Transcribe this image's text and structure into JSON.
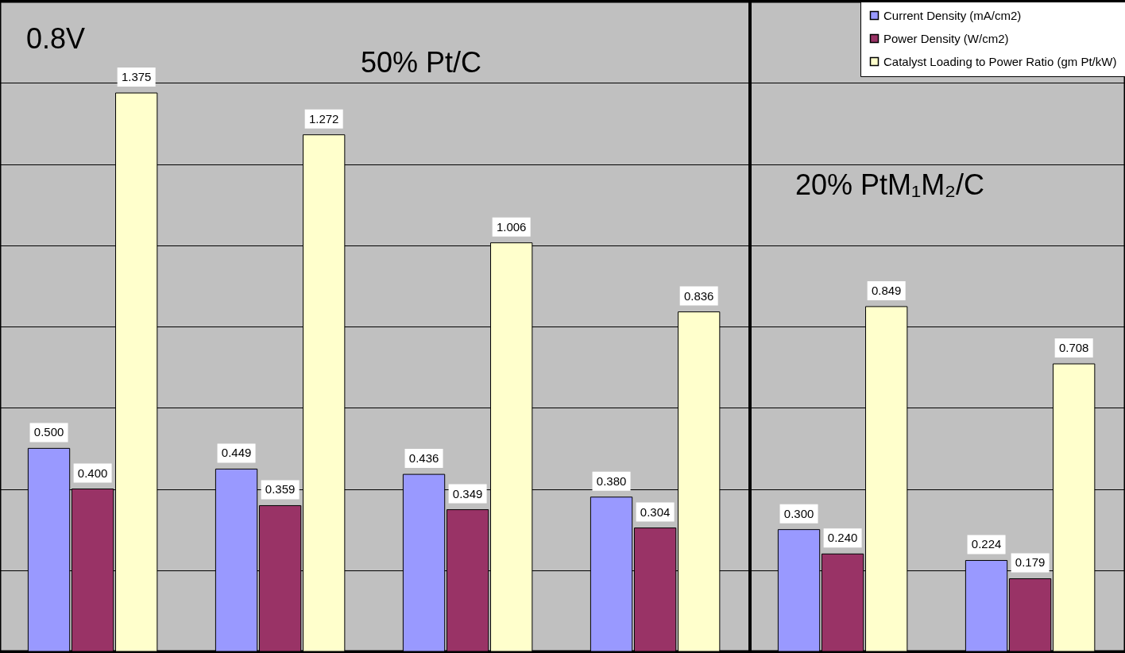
{
  "chart_data": {
    "type": "bar",
    "categories": [
      null,
      null,
      null,
      null,
      null,
      null
    ],
    "series": [
      {
        "name": "Current Density (mA/cm2)",
        "color": "#9999ff",
        "values": [
          0.5,
          0.449,
          0.436,
          0.38,
          0.3,
          0.224
        ],
        "value_labels": [
          "0.500",
          "0.449",
          "0.436",
          "0.380",
          "0.300",
          "0.224"
        ]
      },
      {
        "name": "Power Density (W/cm2)",
        "color": "#993366",
        "values": [
          0.4,
          0.359,
          0.349,
          0.304,
          0.24,
          0.179
        ],
        "value_labels": [
          "0.400",
          "0.359",
          "0.349",
          "0.304",
          "0.240",
          "0.179"
        ]
      },
      {
        "name": "Catalyst Loading to Power Ratio (gm Pt/kW)",
        "color": "#ffffcc",
        "values": [
          1.375,
          1.272,
          1.006,
          0.836,
          0.849,
          0.708
        ],
        "value_labels": [
          "1.375",
          "1.272",
          "1.006",
          "0.836",
          "0.849",
          "0.708"
        ]
      }
    ],
    "ylim": [
      0,
      1.6
    ],
    "yticks": [
      {
        "value": 0.2,
        "label": null
      },
      {
        "value": 0.4,
        "label": null
      },
      {
        "value": 0.6,
        "label": null
      },
      {
        "value": 0.8,
        "label": null
      },
      {
        "value": 1.0,
        "label": null
      },
      {
        "value": 1.2,
        "label": null
      },
      {
        "value": 1.4,
        "label": null
      },
      {
        "value": 1.6,
        "label": null
      }
    ],
    "tick_labels": false,
    "grid": "y",
    "legend": "top right",
    "annotations": [
      "0.8V",
      "50% Pt/C",
      "20% PtM₁M₂/C"
    ]
  }
}
